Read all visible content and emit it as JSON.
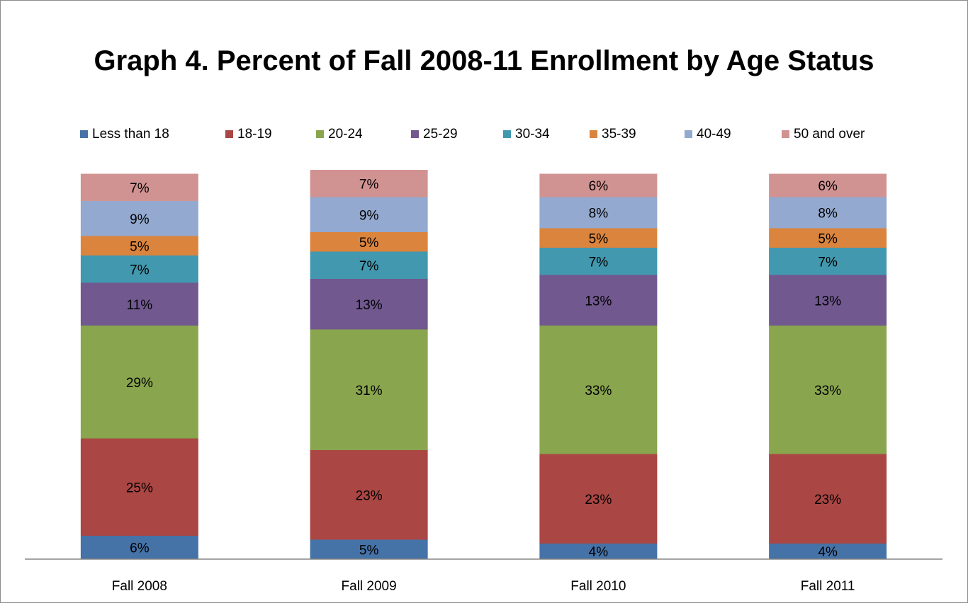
{
  "chart_data": {
    "type": "stacked_bar",
    "title": "Graph 4. Percent of Fall 2008-11 Enrollment by Age Status",
    "categories": [
      "Fall 2008",
      "Fall 2009",
      "Fall 2010",
      "Fall 2011"
    ],
    "ylim": [
      0,
      100
    ],
    "legend": "top",
    "series": [
      {
        "name": "Less than 18",
        "color": "#4572a7",
        "values": [
          6,
          5,
          4,
          4
        ],
        "value_labels": [
          "6%",
          "5%",
          "4%",
          "4%"
        ]
      },
      {
        "name": "18-19",
        "color": "#aa4643",
        "values": [
          25,
          23,
          23,
          23
        ],
        "value_labels": [
          "25%",
          "23%",
          "23%",
          "23%"
        ]
      },
      {
        "name": "20-24",
        "color": "#89a54e",
        "values": [
          29,
          31,
          33,
          33
        ],
        "value_labels": [
          "29%",
          "31%",
          "33%",
          "33%"
        ]
      },
      {
        "name": "25-29",
        "color": "#71588f",
        "values": [
          11,
          13,
          13,
          13
        ],
        "value_labels": [
          "11%",
          "13%",
          "13%",
          "13%"
        ]
      },
      {
        "name": "30-34",
        "color": "#4198af",
        "values": [
          7,
          7,
          7,
          7
        ],
        "value_labels": [
          "7%",
          "7%",
          "7%",
          "7%"
        ]
      },
      {
        "name": "35-39",
        "color": "#db843d",
        "values": [
          5,
          5,
          5,
          5
        ],
        "value_labels": [
          "5%",
          "5%",
          "5%",
          "5%"
        ]
      },
      {
        "name": "40-49",
        "color": "#93a9cf",
        "values": [
          9,
          9,
          8,
          8
        ],
        "value_labels": [
          "9%",
          "9%",
          "8%",
          "8%"
        ]
      },
      {
        "name": "50 and over",
        "color": "#d19392",
        "values": [
          7,
          7,
          6,
          6
        ],
        "value_labels": [
          "7%",
          "7%",
          "6%",
          "6%"
        ]
      }
    ]
  }
}
